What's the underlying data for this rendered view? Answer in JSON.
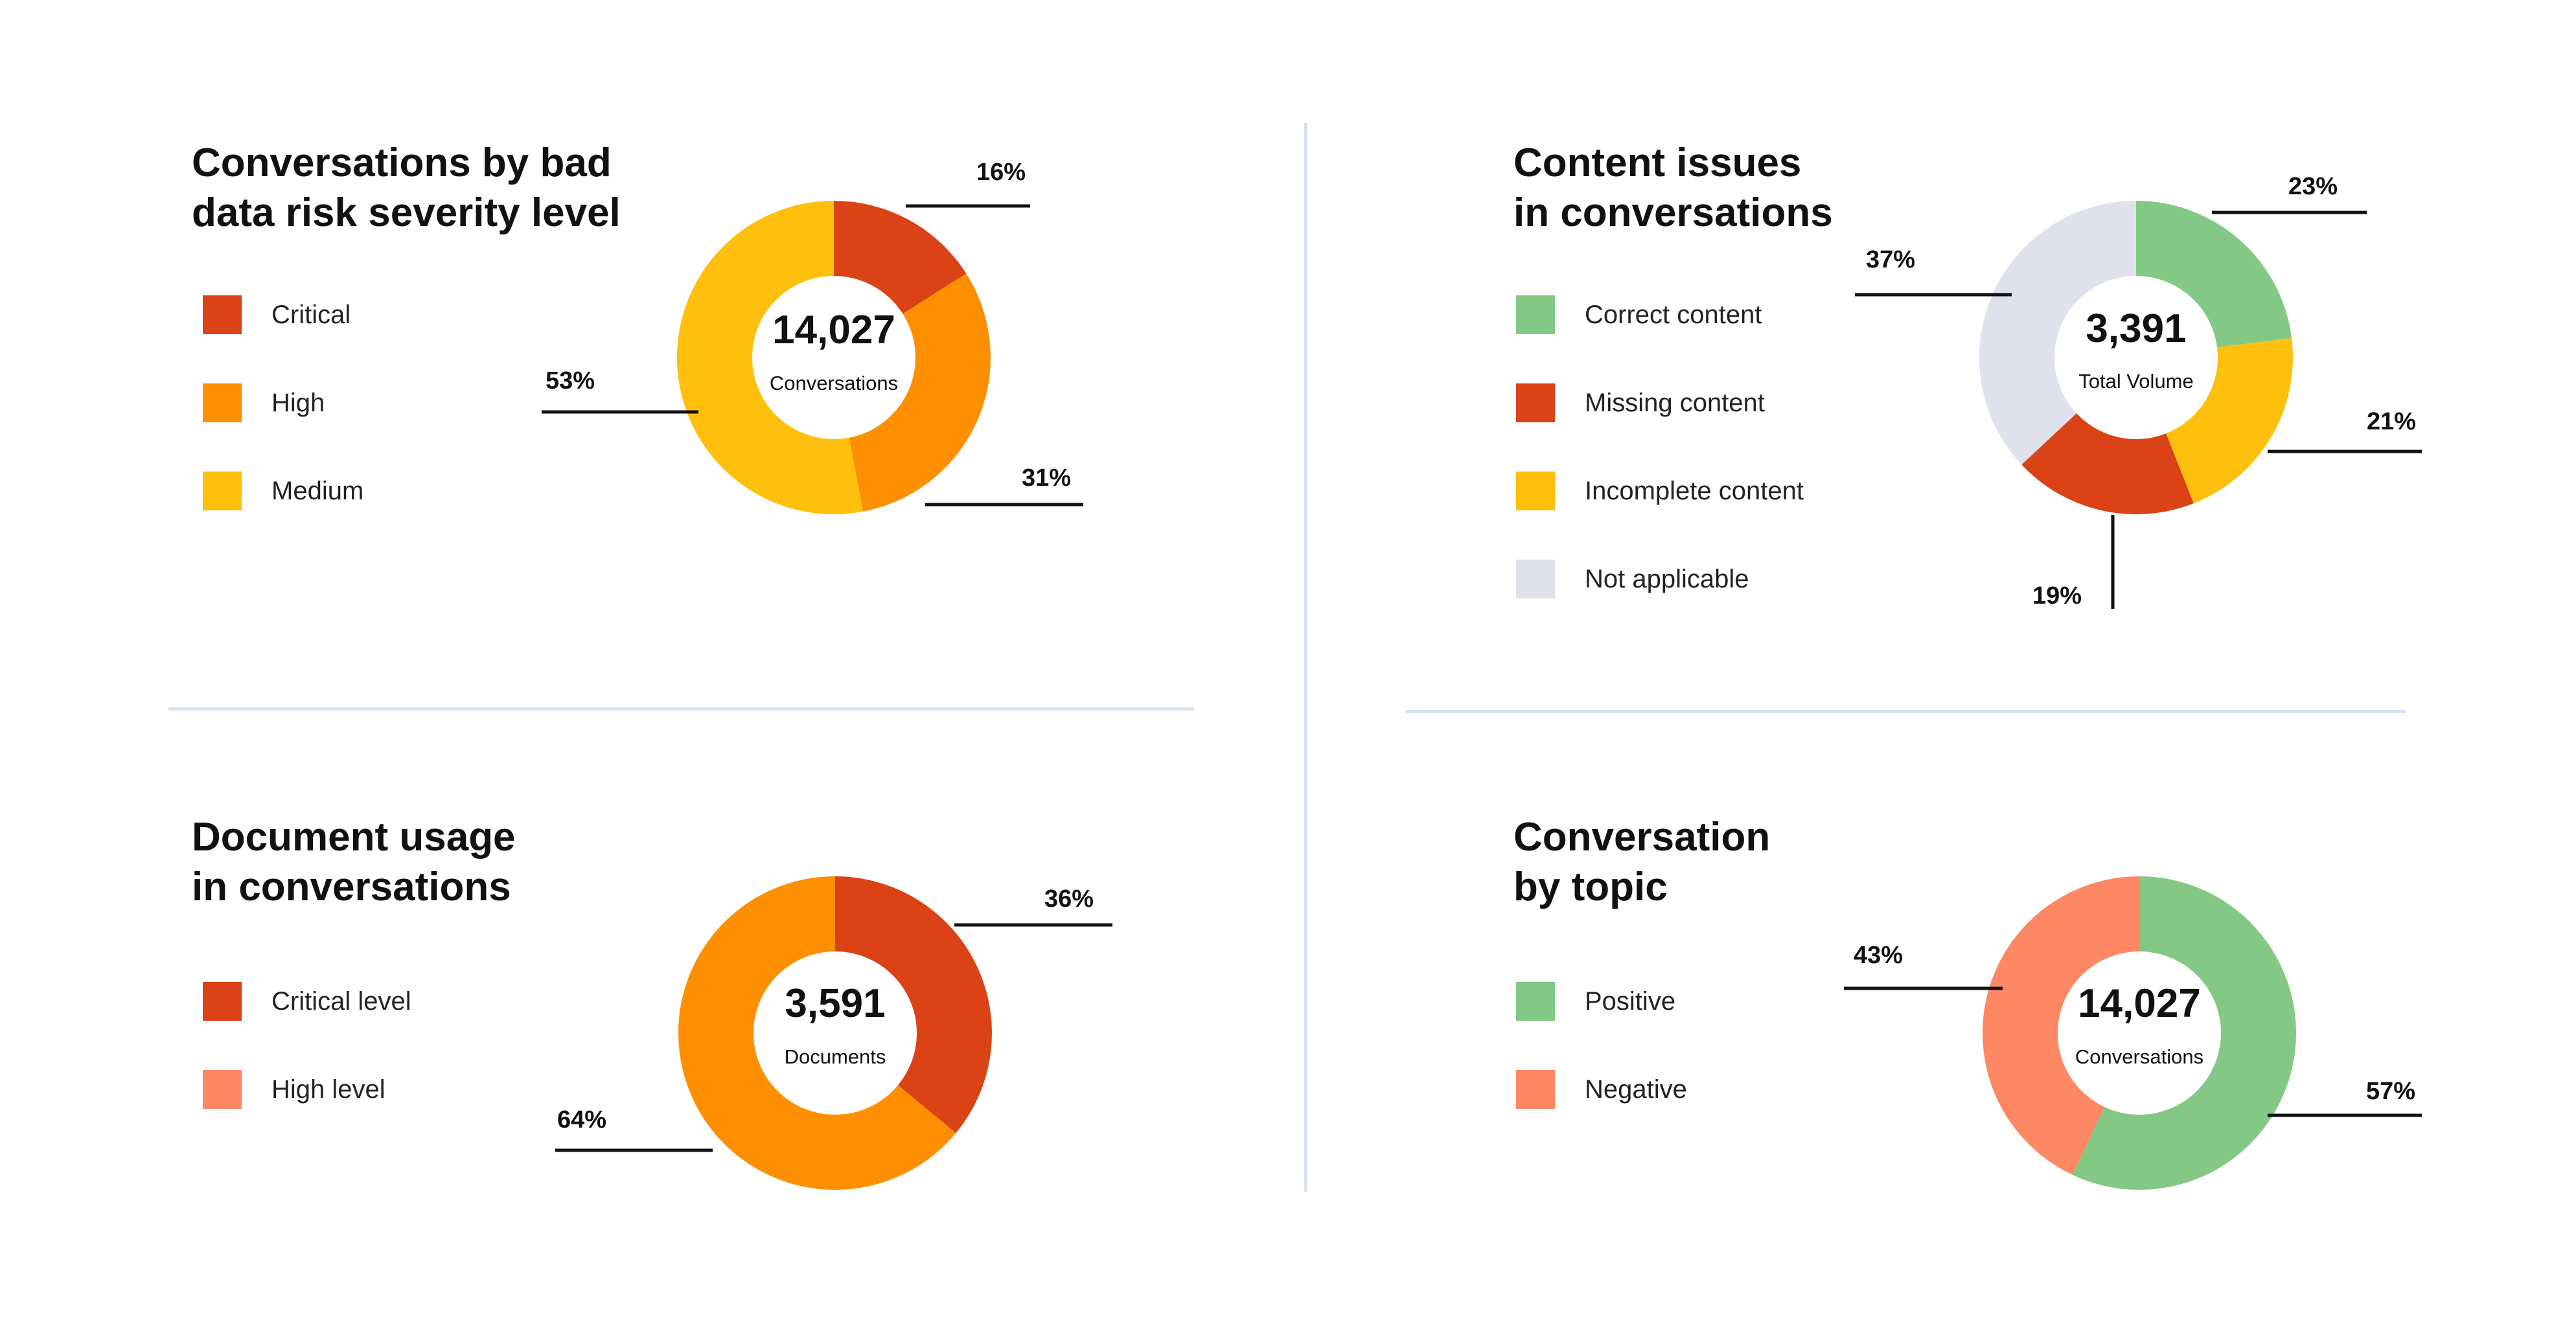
{
  "colors": {
    "critical": "#db4215",
    "high": "#fe8f00",
    "medium": "#fec00d",
    "green": "#83c985",
    "grey": "#dfe1ec",
    "salmon": "#fd8863",
    "divider": "#d7e1f4"
  },
  "chart_data": [
    {
      "type": "pie",
      "title": "Conversations by bad\ndata risk severity level",
      "center_value": "14,027",
      "center_label": "Conversations",
      "legend_placement": "left",
      "categories": [
        "Critical",
        "High",
        "Medium"
      ],
      "values": [
        16,
        31,
        53
      ],
      "value_labels": [
        "16%",
        "31%",
        "53%"
      ],
      "colors": [
        "#db4215",
        "#fe8f00",
        "#fec00d"
      ]
    },
    {
      "type": "pie",
      "title": "Content issues\nin conversations",
      "center_value": "3,391",
      "center_label": "Total Volume",
      "legend_placement": "left",
      "categories": [
        "Correct content",
        "Missing content",
        "Incomplete content",
        "Not applicable"
      ],
      "values": [
        23,
        19,
        21,
        37
      ],
      "value_labels": [
        "23%",
        "19%",
        "21%",
        "37%"
      ],
      "colors": [
        "#83c985",
        "#db4215",
        "#fec00d",
        "#dfe1ec"
      ],
      "slice_order": [
        0,
        2,
        1,
        3
      ]
    },
    {
      "type": "pie",
      "title": "Document usage\nin conversations",
      "center_value": "3,591",
      "center_label": "Documents",
      "legend_placement": "left",
      "categories": [
        "Critical level",
        "High level"
      ],
      "values": [
        36,
        64
      ],
      "value_labels": [
        "36%",
        "64%"
      ],
      "colors": [
        "#db4215",
        "#fe8f00"
      ],
      "legend_colors": [
        "#db4215",
        "#fd8863"
      ]
    },
    {
      "type": "pie",
      "title": "Conversation\nby topic",
      "center_value": "14,027",
      "center_label": "Conversations",
      "legend_placement": "left",
      "categories": [
        "Positive",
        "Negative"
      ],
      "values": [
        57,
        43
      ],
      "value_labels": [
        "57%",
        "43%"
      ],
      "colors": [
        "#83c985",
        "#fd8863"
      ]
    }
  ]
}
